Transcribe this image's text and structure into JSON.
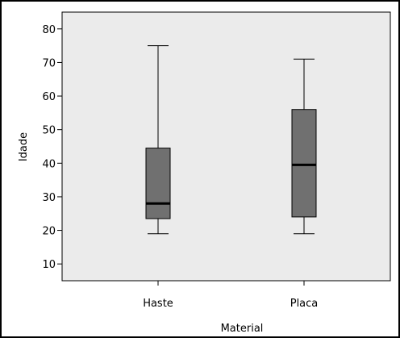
{
  "chart_data": {
    "type": "boxplot",
    "title": "",
    "xlabel": "Material",
    "ylabel": "Idade",
    "categories": [
      "Haste",
      "Placa"
    ],
    "ylim": [
      5,
      85
    ],
    "yticks": [
      10,
      20,
      30,
      40,
      50,
      60,
      70,
      80
    ],
    "ytick_labels": [
      "10",
      "20",
      "30",
      "40",
      "50",
      "60",
      "70",
      "80"
    ],
    "grid": false,
    "legend": "none",
    "boxes": [
      {
        "name": "Haste",
        "min": 19,
        "q1": 23.5,
        "median": 28,
        "q3": 44.5,
        "max": 75
      },
      {
        "name": "Placa",
        "min": 19,
        "q1": 24,
        "median": 39.5,
        "q3": 56,
        "max": 71
      }
    ],
    "colors": {
      "plot_background": "#ebebeb",
      "box_fill": "#707070",
      "median_line": "#000000",
      "whisker": "#000000"
    }
  }
}
